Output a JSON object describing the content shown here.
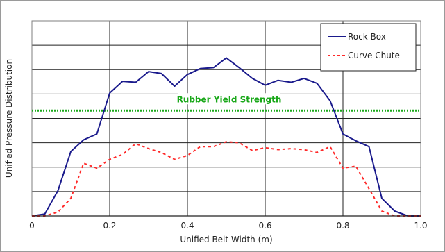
{
  "chart_data": {
    "type": "line",
    "xlabel": "Unified Belt Width (m)",
    "ylabel": "Unified Pressure Distribution",
    "xlim": [
      0,
      1.0
    ],
    "ylim": [
      0,
      1.0
    ],
    "x_ticks": [
      "0",
      "0.2",
      "0.4",
      "0.6",
      "0.8",
      "1.0"
    ],
    "y_gridlines": 7,
    "grid": true,
    "legend_position": "top-right",
    "series": [
      {
        "name": "Rock Box",
        "color": "#1a1a8c",
        "style": "solid",
        "points": [
          [
            0.0,
            0.0
          ],
          [
            0.033,
            0.01
          ],
          [
            0.067,
            0.13
          ],
          [
            0.1,
            0.33
          ],
          [
            0.133,
            0.39
          ],
          [
            0.167,
            0.42
          ],
          [
            0.2,
            0.63
          ],
          [
            0.233,
            0.69
          ],
          [
            0.267,
            0.685
          ],
          [
            0.3,
            0.74
          ],
          [
            0.333,
            0.73
          ],
          [
            0.367,
            0.665
          ],
          [
            0.4,
            0.725
          ],
          [
            0.433,
            0.755
          ],
          [
            0.467,
            0.76
          ],
          [
            0.5,
            0.81
          ],
          [
            0.533,
            0.76
          ],
          [
            0.567,
            0.705
          ],
          [
            0.6,
            0.67
          ],
          [
            0.633,
            0.695
          ],
          [
            0.667,
            0.685
          ],
          [
            0.7,
            0.705
          ],
          [
            0.733,
            0.68
          ],
          [
            0.767,
            0.59
          ],
          [
            0.8,
            0.42
          ],
          [
            0.833,
            0.385
          ],
          [
            0.867,
            0.355
          ],
          [
            0.9,
            0.09
          ],
          [
            0.933,
            0.025
          ],
          [
            0.967,
            0.0
          ],
          [
            1.0,
            0.0
          ]
        ]
      },
      {
        "name": "Curve Chute",
        "color": "#ff2a2a",
        "style": "dashed",
        "points": [
          [
            0.0,
            0.0
          ],
          [
            0.033,
            0.0
          ],
          [
            0.067,
            0.02
          ],
          [
            0.1,
            0.09
          ],
          [
            0.133,
            0.27
          ],
          [
            0.167,
            0.245
          ],
          [
            0.2,
            0.29
          ],
          [
            0.233,
            0.315
          ],
          [
            0.267,
            0.37
          ],
          [
            0.3,
            0.345
          ],
          [
            0.333,
            0.325
          ],
          [
            0.367,
            0.29
          ],
          [
            0.4,
            0.31
          ],
          [
            0.433,
            0.355
          ],
          [
            0.467,
            0.355
          ],
          [
            0.5,
            0.38
          ],
          [
            0.533,
            0.375
          ],
          [
            0.567,
            0.335
          ],
          [
            0.6,
            0.35
          ],
          [
            0.633,
            0.34
          ],
          [
            0.667,
            0.345
          ],
          [
            0.7,
            0.34
          ],
          [
            0.733,
            0.325
          ],
          [
            0.767,
            0.355
          ],
          [
            0.8,
            0.245
          ],
          [
            0.833,
            0.255
          ],
          [
            0.867,
            0.14
          ],
          [
            0.9,
            0.025
          ],
          [
            0.933,
            0.0
          ],
          [
            0.967,
            0.0
          ],
          [
            1.0,
            0.0
          ]
        ]
      }
    ],
    "reference_line": {
      "label": "Rubber Yield Strength",
      "y": 0.54,
      "color": "#1aa81a",
      "style": "dotted"
    }
  }
}
